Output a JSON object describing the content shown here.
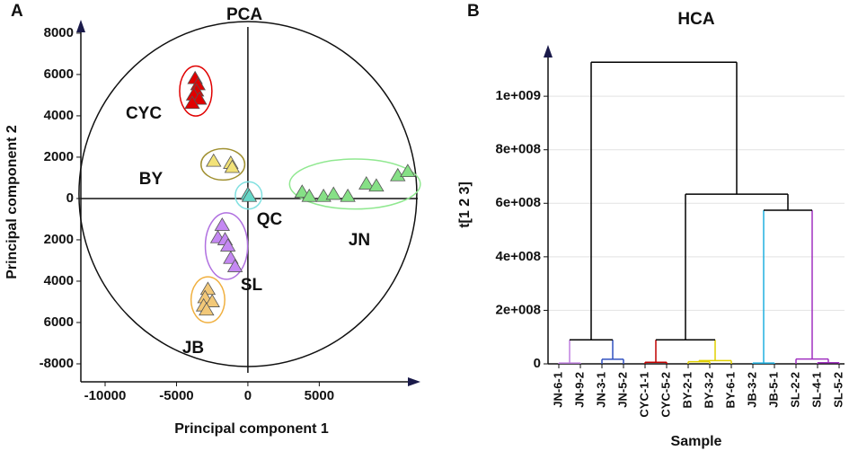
{
  "chart_data": [
    {
      "type": "scatter",
      "panel_label": "A",
      "title": "PCA",
      "x_label": "Principal component 1",
      "y_label": "Principal component 2",
      "xlim": [
        -11700,
        11900
      ],
      "ylim": [
        -8870,
        8300
      ],
      "xticks": [
        -10000,
        -5000,
        0,
        5000
      ],
      "yticks": [
        8000,
        6000,
        4000,
        2000,
        0,
        {
          "value": -2000,
          "label": "2000"
        },
        {
          "value": -4000,
          "label": "4000"
        },
        {
          "value": -6000,
          "label": "6000"
        },
        -8000
      ],
      "series": [
        {
          "name": "CYC",
          "color": "#e00000",
          "ellipse_color": "#e00000",
          "x": [
            -3700,
            -3500,
            -3600,
            -3800,
            -3400,
            -3900
          ],
          "values": [
            5800,
            5500,
            5200,
            5000,
            4800,
            4600
          ]
        },
        {
          "name": "BY",
          "color": "#f2e278",
          "ellipse_color": "#a09030",
          "x": [
            -2400,
            -1200,
            -1100
          ],
          "values": [
            1800,
            1700,
            1500
          ]
        },
        {
          "name": "QC",
          "color": "#66d8c8",
          "ellipse_color": "#80e0e0",
          "x": [
            0,
            100
          ],
          "values": [
            200,
            100
          ]
        },
        {
          "name": "JN",
          "color": "#86e086",
          "ellipse_color": "#90e890",
          "x": [
            3800,
            4300,
            5300,
            6000,
            7000,
            8300,
            9000,
            10500,
            11200
          ],
          "values": [
            300,
            100,
            100,
            200,
            100,
            700,
            600,
            1100,
            1300
          ]
        },
        {
          "name": "SL",
          "color": "#c488f2",
          "ellipse_color": "#b070e0",
          "x": [
            -1800,
            -2100,
            -1600,
            -1400,
            -1200,
            -900
          ],
          "values": [
            -1300,
            -1900,
            -2000,
            -2300,
            -2900,
            -3300
          ]
        },
        {
          "name": "JB",
          "color": "#f2c878",
          "ellipse_color": "#f0b040",
          "x": [
            -2800,
            -3000,
            -2500,
            -3100,
            -2900
          ],
          "values": [
            -4400,
            -4800,
            -5000,
            -5200,
            -5400
          ]
        }
      ]
    },
    {
      "type": "dendrogram",
      "panel_label": "B",
      "title": "HCA",
      "x_label": "Sample",
      "y_label": "t[1 2 3]",
      "ylim": [
        0,
        1175000000
      ],
      "yticks": [
        0,
        {
          "value": 200000000,
          "label": "2e+008"
        },
        {
          "value": 400000000,
          "label": "4e+008"
        },
        {
          "value": 600000000,
          "label": "6e+008"
        },
        {
          "value": 800000000,
          "label": "8e+008"
        },
        {
          "value": 1000000000,
          "label": "1e+009"
        }
      ],
      "grid": true,
      "categories": [
        "JN-6-1",
        "JN-9-2",
        "JN-3-1",
        "JN-5-2",
        "CYC-1-1",
        "CYC-5-2",
        "BY-2-1",
        "BY-3-2",
        "BY-6-1",
        "JB-3-2",
        "JB-5-1",
        "SL-2-2",
        "SL-4-1",
        "SL-5-2"
      ],
      "links": [
        {
          "left": 0,
          "right": 1,
          "height": 3000000,
          "color": "#c080e0"
        },
        {
          "left": 2,
          "right": 3,
          "height": 17000000,
          "color": "#3050c0"
        },
        {
          "left": 14,
          "right": 15,
          "height": 90000000,
          "color": "#000000"
        },
        {
          "left": 4,
          "right": 5,
          "height": 6000000,
          "color": "#c00000"
        },
        {
          "left": 6,
          "right": 7,
          "height": 8000000,
          "color": "#e0d000"
        },
        {
          "left": 18,
          "right": 8,
          "height": 12000000,
          "color": "#e0d000"
        },
        {
          "left": 17,
          "right": 19,
          "height": 90000000,
          "color": "#000000"
        },
        {
          "left": 9,
          "right": 10,
          "height": 3000000,
          "color": "#20b0e0"
        },
        {
          "left": 12,
          "right": 13,
          "height": 4000000,
          "color": "#a030c0"
        },
        {
          "left": 11,
          "right": 22,
          "height": 18000000,
          "color": "#a030c0"
        },
        {
          "left": 21,
          "right": 23,
          "height": 574000000,
          "color": "#000000"
        },
        {
          "left": 20,
          "right": 24,
          "height": 634000000,
          "color": "#000000"
        },
        {
          "left": 16,
          "right": 25,
          "height": 1127000000,
          "color": "#000000"
        }
      ]
    }
  ]
}
